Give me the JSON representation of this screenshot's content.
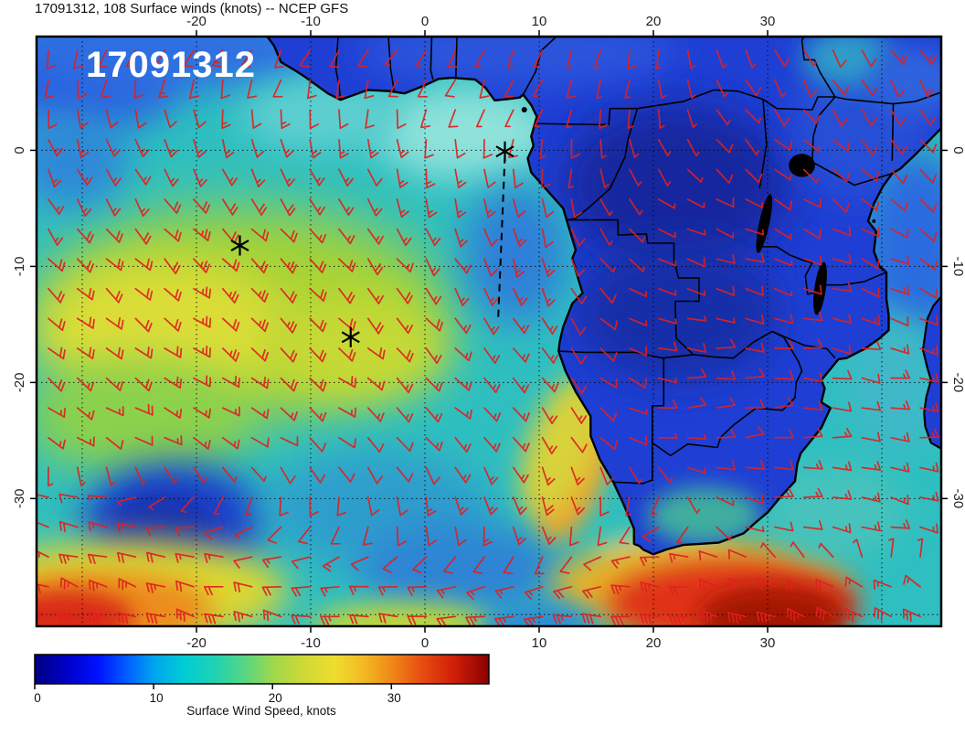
{
  "chart_data": {
    "type": "heatmap",
    "title": "17091312, 108 Surface winds (knots) -- NCEP GFS",
    "overlay_label": "17091312",
    "field": "Surface wind speed (knots) with wind barbs",
    "model": "NCEP GFS",
    "forecast_hour": "108",
    "run": "17091312",
    "axes": {
      "lon_range": [
        -34,
        45.2
      ],
      "lat_range": [
        -41,
        9.8
      ],
      "lon_ticks": [
        -20,
        -10,
        0,
        10,
        20,
        30
      ],
      "lat_ticks": [
        0,
        -10,
        -20,
        -30
      ],
      "grid_lons": [
        -30,
        -20,
        -10,
        0,
        10,
        20,
        30,
        40
      ],
      "grid_lats": [
        0,
        -10,
        -20,
        -30,
        -40
      ],
      "grid": "dotted"
    },
    "colorbar": {
      "label": "Surface Wind Speed, knots",
      "ticks": [
        0,
        10,
        20,
        30
      ],
      "range": [
        0,
        38.2
      ],
      "stops": [
        [
          0.0,
          "#000080"
        ],
        [
          0.07,
          "#0000c8"
        ],
        [
          0.14,
          "#0012ff"
        ],
        [
          0.21,
          "#0066ff"
        ],
        [
          0.262,
          "#00a4ee"
        ],
        [
          0.33,
          "#00cdd4"
        ],
        [
          0.4,
          "#22d2b0"
        ],
        [
          0.47,
          "#5fd67c"
        ],
        [
          0.524,
          "#9dd84c"
        ],
        [
          0.59,
          "#cdd936"
        ],
        [
          0.66,
          "#eedd2e"
        ],
        [
          0.72,
          "#f2bc24"
        ],
        [
          0.786,
          "#f08818"
        ],
        [
          0.85,
          "#e84e12"
        ],
        [
          0.92,
          "#d2200a"
        ],
        [
          1.0,
          "#8a0000"
        ]
      ]
    },
    "barb_color": "#e01f1f",
    "markers": [
      {
        "lon": 7.0,
        "lat": -0.1
      },
      {
        "lon": -16.2,
        "lat": -8.2
      },
      {
        "lon": -6.5,
        "lat": -16.1
      }
    ],
    "track": {
      "style": "dashed",
      "from": {
        "lon": 7.0,
        "lat": -0.5
      },
      "to": {
        "lon": 6.4,
        "lat": -14.8
      }
    },
    "wind_grid": {
      "lons": [
        -32,
        -20,
        -10,
        0,
        10,
        20,
        30,
        42
      ],
      "lats": [
        8,
        0,
        -8,
        -16,
        -24,
        -32,
        -40
      ],
      "barbs": [
        [
          [
            195,
            10
          ],
          [
            205,
            12
          ],
          [
            210,
            10
          ],
          [
            215,
            8
          ],
          [
            205,
            7
          ],
          [
            185,
            6
          ],
          [
            155,
            8
          ],
          [
            150,
            12
          ]
        ],
        [
          [
            160,
            14
          ],
          [
            155,
            16
          ],
          [
            160,
            14
          ],
          [
            175,
            12
          ],
          [
            195,
            8
          ],
          [
            150,
            5
          ],
          [
            130,
            7
          ],
          [
            140,
            10
          ]
        ],
        [
          [
            140,
            18
          ],
          [
            135,
            22
          ],
          [
            140,
            20
          ],
          [
            150,
            16
          ],
          [
            165,
            12
          ],
          [
            115,
            6
          ],
          [
            110,
            8
          ],
          [
            120,
            12
          ]
        ],
        [
          [
            130,
            20
          ],
          [
            125,
            24
          ],
          [
            130,
            22
          ],
          [
            140,
            17
          ],
          [
            150,
            14
          ],
          [
            100,
            7
          ],
          [
            95,
            9
          ],
          [
            105,
            14
          ]
        ],
        [
          [
            120,
            16
          ],
          [
            115,
            14
          ],
          [
            125,
            13
          ],
          [
            130,
            12
          ],
          [
            145,
            17
          ],
          [
            90,
            7
          ],
          [
            85,
            10
          ],
          [
            95,
            14
          ]
        ],
        [
          [
            285,
            20
          ],
          [
            255,
            8
          ],
          [
            210,
            10
          ],
          [
            175,
            13
          ],
          [
            160,
            18
          ],
          [
            230,
            9
          ],
          [
            95,
            14
          ],
          [
            105,
            18
          ]
        ],
        [
          [
            290,
            34
          ],
          [
            285,
            28
          ],
          [
            280,
            22
          ],
          [
            275,
            20
          ],
          [
            270,
            24
          ],
          [
            280,
            32
          ],
          [
            290,
            36
          ],
          [
            295,
            30
          ]
        ]
      ]
    }
  }
}
